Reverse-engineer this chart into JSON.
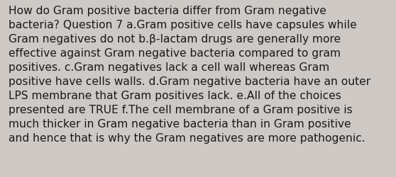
{
  "text": "How do Gram positive bacteria differ from Gram negative\nbacteria? Question 7 a.Gram positive cells have capsules while\nGram negatives do not b.β-lactam drugs are generally more\neffective against Gram negative bacteria compared to gram\npositives. c.Gram negatives lack a cell wall whereas Gram\npositive have cells walls. d.Gram negative bacteria have an outer\nLPS membrane that Gram positives lack. e.All of the choices\npresented are TRUE f.The cell membrane of a Gram positive is\nmuch thicker in Gram negative bacteria than in Gram positive\nand hence that is why the Gram negatives are more pathogenic.",
  "background_color": "#cec9c5",
  "text_color": "#1a1a1a",
  "font_size": 11.2,
  "fig_width": 5.58,
  "fig_height": 2.51,
  "dpi": 100
}
